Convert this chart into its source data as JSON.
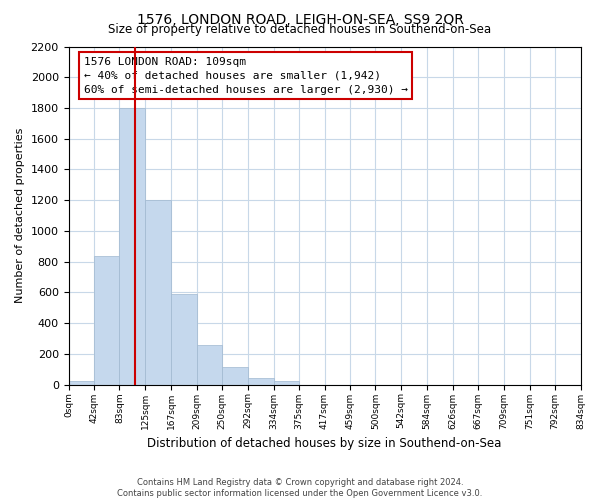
{
  "title": "1576, LONDON ROAD, LEIGH-ON-SEA, SS9 2QR",
  "subtitle": "Size of property relative to detached houses in Southend-on-Sea",
  "xlabel": "Distribution of detached houses by size in Southend-on-Sea",
  "ylabel": "Number of detached properties",
  "footnote1": "Contains HM Land Registry data © Crown copyright and database right 2024.",
  "footnote2": "Contains public sector information licensed under the Open Government Licence v3.0.",
  "bin_edges": [
    0,
    42,
    83,
    125,
    167,
    209,
    250,
    292,
    334,
    375,
    417,
    459,
    500,
    542,
    584,
    626,
    667,
    709,
    751,
    792,
    834
  ],
  "bin_counts": [
    25,
    835,
    1800,
    1200,
    590,
    255,
    115,
    45,
    25,
    0,
    0,
    0,
    0,
    0,
    0,
    0,
    0,
    0,
    0,
    0
  ],
  "bar_color": "#c5d8ed",
  "bar_edge_color": "#a0b8d0",
  "vline_x": 109,
  "vline_color": "#cc0000",
  "ylim": [
    0,
    2200
  ],
  "yticks": [
    0,
    200,
    400,
    600,
    800,
    1000,
    1200,
    1400,
    1600,
    1800,
    2000,
    2200
  ],
  "annotation_title": "1576 LONDON ROAD: 109sqm",
  "annotation_line1": "← 40% of detached houses are smaller (1,942)",
  "annotation_line2": "60% of semi-detached houses are larger (2,930) →",
  "background_color": "#ffffff",
  "grid_color": "#c8d8e8"
}
